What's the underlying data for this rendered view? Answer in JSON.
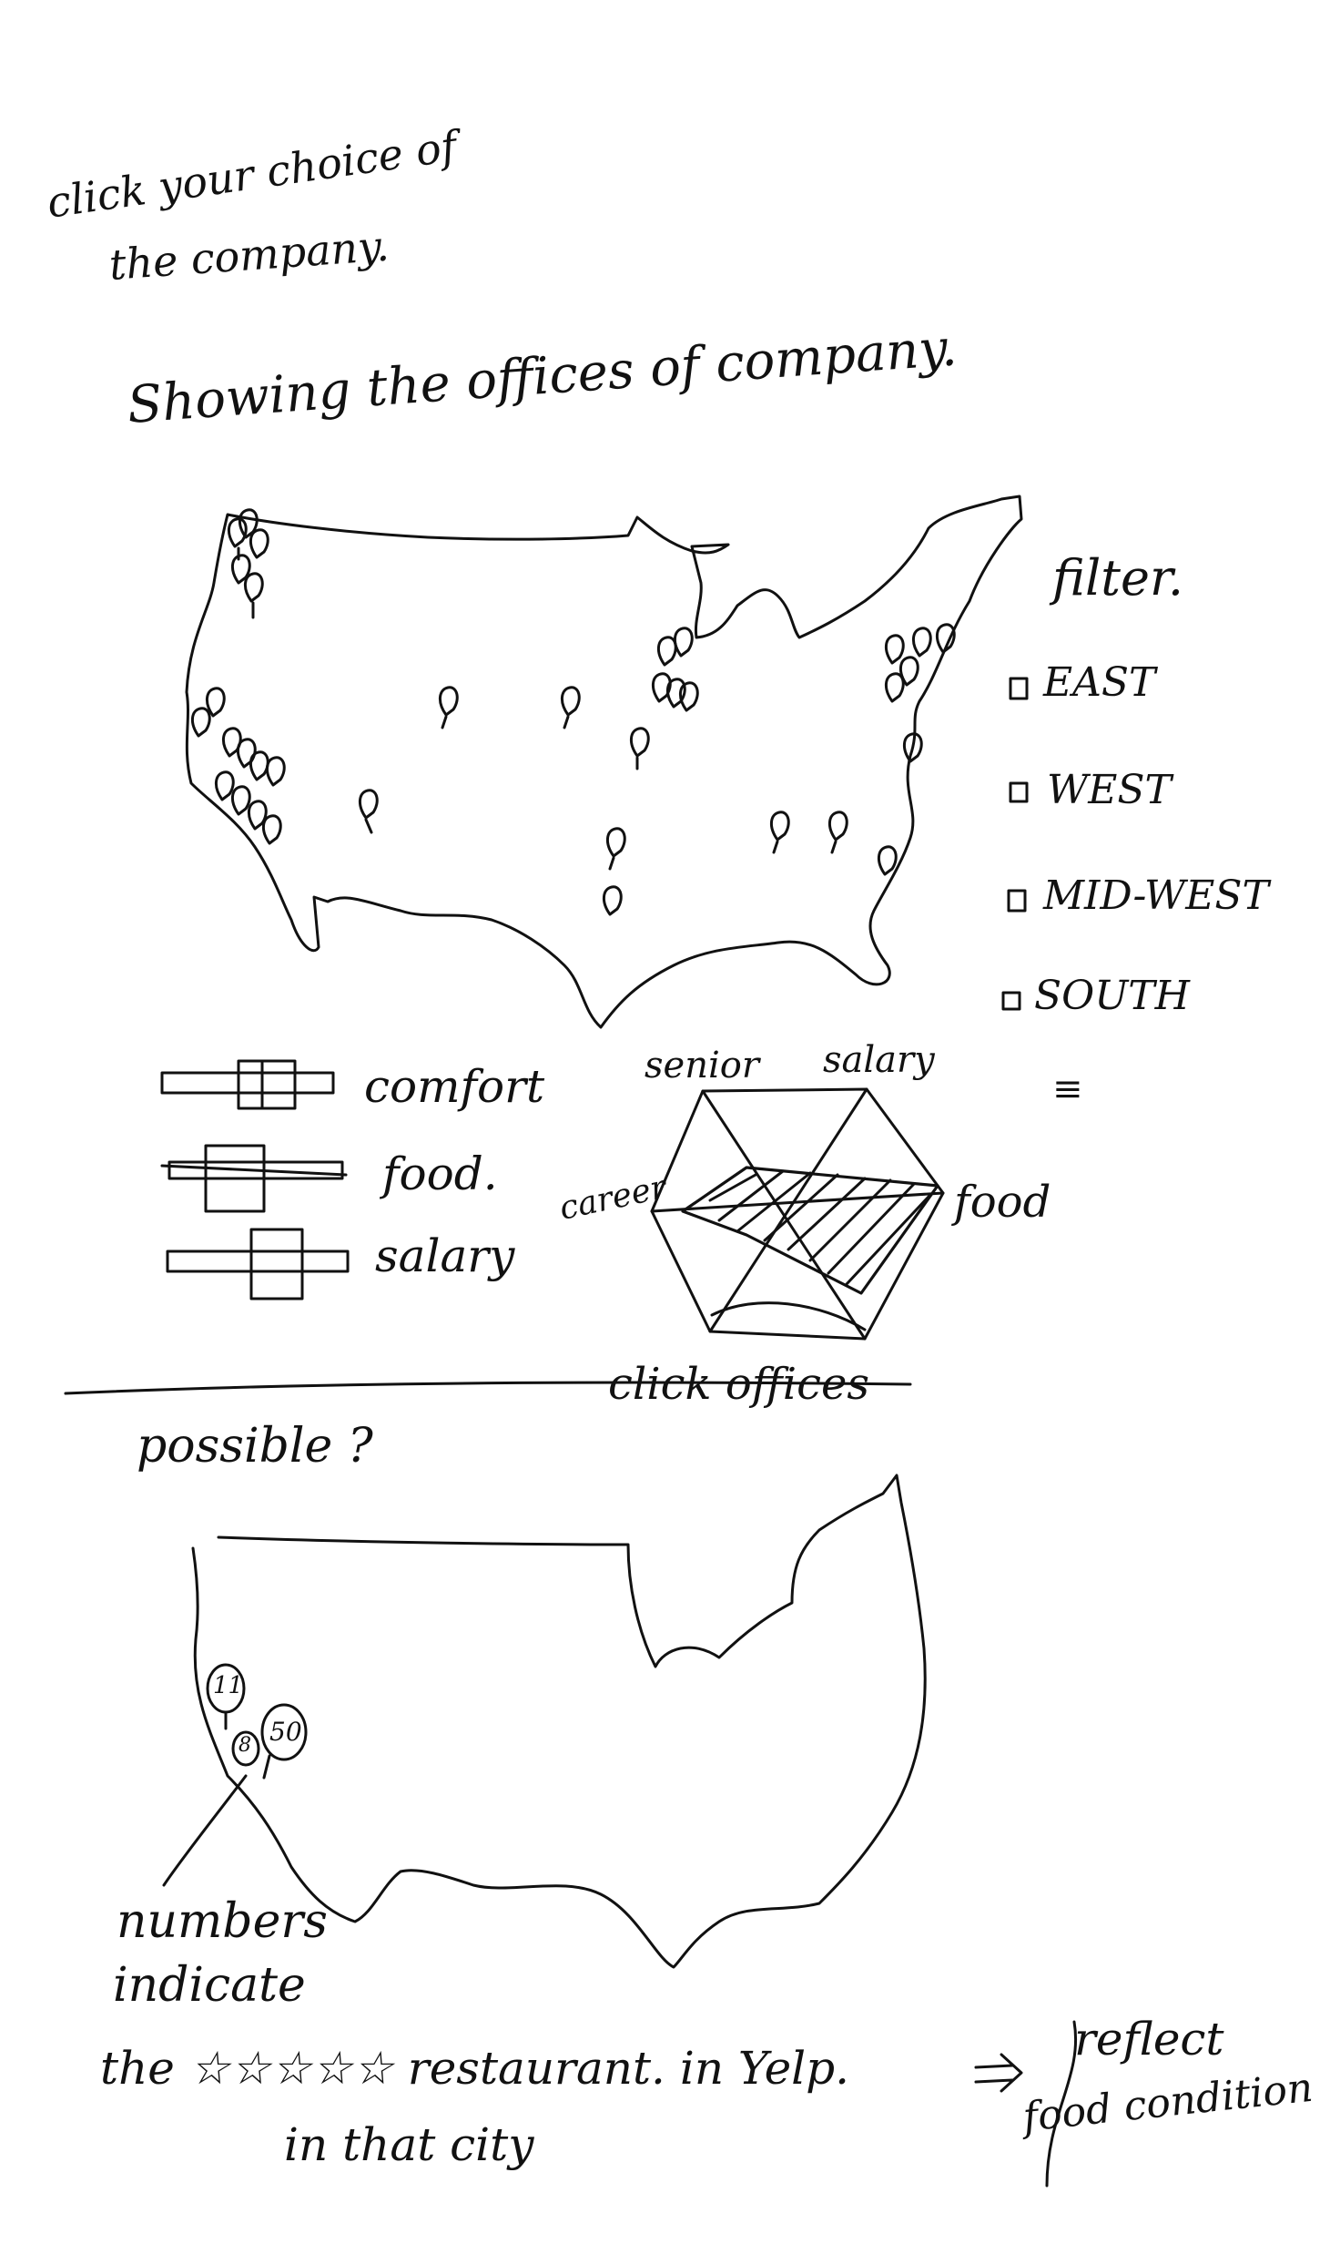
{
  "header": {
    "line1": "click your choice of",
    "line2": "the company.",
    "subtitle": "Showing the offices of company."
  },
  "filter": {
    "title": "filter.",
    "options": [
      "EAST",
      "WEST",
      "MID-WEST",
      "SOUTH"
    ],
    "more": "≡"
  },
  "legend": {
    "items": [
      "comfort",
      "food.",
      "salary"
    ]
  },
  "radar": {
    "labels": [
      "senior",
      "salary",
      "career",
      "food"
    ],
    "caption": "click offices"
  },
  "lower": {
    "question": "possible ?",
    "cluster_values": [
      "11",
      "8",
      "50"
    ],
    "note_line1": "numbers",
    "note_line2": "indicate",
    "note_line3": "the ☆☆☆☆☆ restaurant. in Yelp.",
    "note_line4": "in that city",
    "arrow_text": "⇒",
    "reflect_line1": "reflect",
    "reflect_line2": "food condition"
  }
}
